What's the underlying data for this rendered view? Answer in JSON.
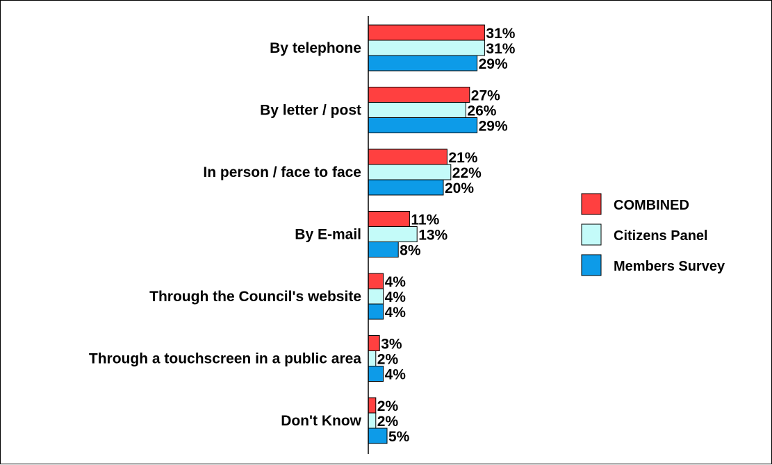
{
  "chart_data": {
    "type": "bar",
    "orientation": "horizontal",
    "categories": [
      "By telephone",
      "By letter / post",
      "In person / face to face",
      "By E-mail",
      "Through the Council's website",
      "Through a touchscreen in a public area",
      "Don't Know"
    ],
    "series": [
      {
        "name": "COMBINED",
        "color": "#ff4040",
        "values": [
          31,
          27,
          21,
          11,
          4,
          3,
          2
        ]
      },
      {
        "name": "Citizens Panel",
        "color": "#c4fbf9",
        "values": [
          31,
          26,
          22,
          13,
          4,
          2,
          2
        ]
      },
      {
        "name": "Members Survey",
        "color": "#0d9be8",
        "values": [
          29,
          29,
          20,
          8,
          4,
          4,
          5
        ]
      }
    ],
    "value_suffix": "%",
    "xlim": [
      0,
      100
    ],
    "grid": false,
    "legend_position": "right"
  }
}
